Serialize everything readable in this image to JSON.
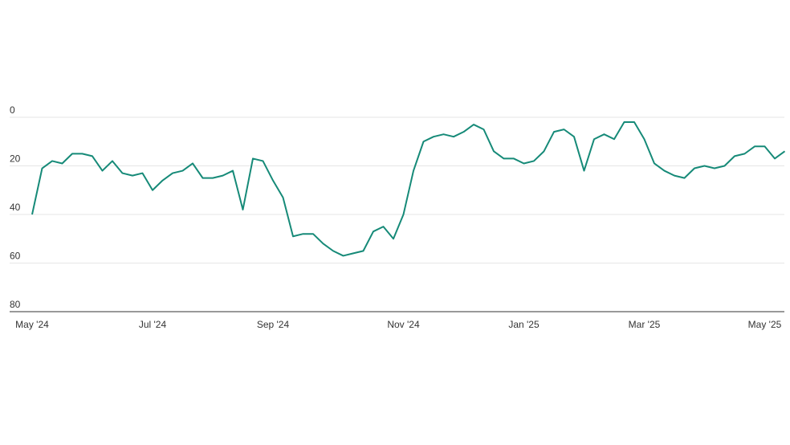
{
  "chart_data": {
    "type": "line",
    "categories": [
      "May '24",
      null,
      null,
      null,
      null,
      null,
      null,
      null,
      null,
      null,
      null,
      null,
      "Jul '24",
      null,
      null,
      null,
      null,
      null,
      null,
      null,
      null,
      null,
      null,
      null,
      "Sep '24",
      null,
      null,
      null,
      null,
      null,
      null,
      null,
      null,
      null,
      null,
      null,
      null,
      "Nov '24",
      null,
      null,
      null,
      null,
      null,
      null,
      null,
      null,
      null,
      null,
      null,
      "Jan '25",
      null,
      null,
      null,
      null,
      null,
      null,
      null,
      null,
      null,
      null,
      null,
      "Mar '25",
      null,
      null,
      null,
      null,
      null,
      null,
      null,
      null,
      null,
      null,
      null,
      "May '25",
      null,
      null
    ],
    "series": [
      {
        "color": "#168a78",
        "values": [
          40,
          21,
          18,
          19,
          15,
          15,
          16,
          22,
          18,
          23,
          24,
          23,
          30,
          26,
          23,
          22,
          19,
          25,
          25,
          24,
          22,
          38,
          17,
          18,
          26,
          33,
          49,
          48,
          48,
          52,
          55,
          57,
          56,
          55,
          47,
          45,
          50,
          40,
          22,
          10,
          8,
          7,
          8,
          6,
          3,
          5,
          14,
          17,
          17,
          19,
          18,
          14,
          6,
          5,
          8,
          22,
          9,
          7,
          9,
          2,
          2,
          9,
          19,
          22,
          24,
          25,
          21,
          20,
          21,
          20,
          16,
          15,
          12,
          12,
          17,
          14
        ]
      }
    ],
    "ylim": [
      0,
      80
    ],
    "yticks": [
      0,
      20,
      40,
      60,
      80
    ],
    "y_inverted": true,
    "grid": true
  }
}
